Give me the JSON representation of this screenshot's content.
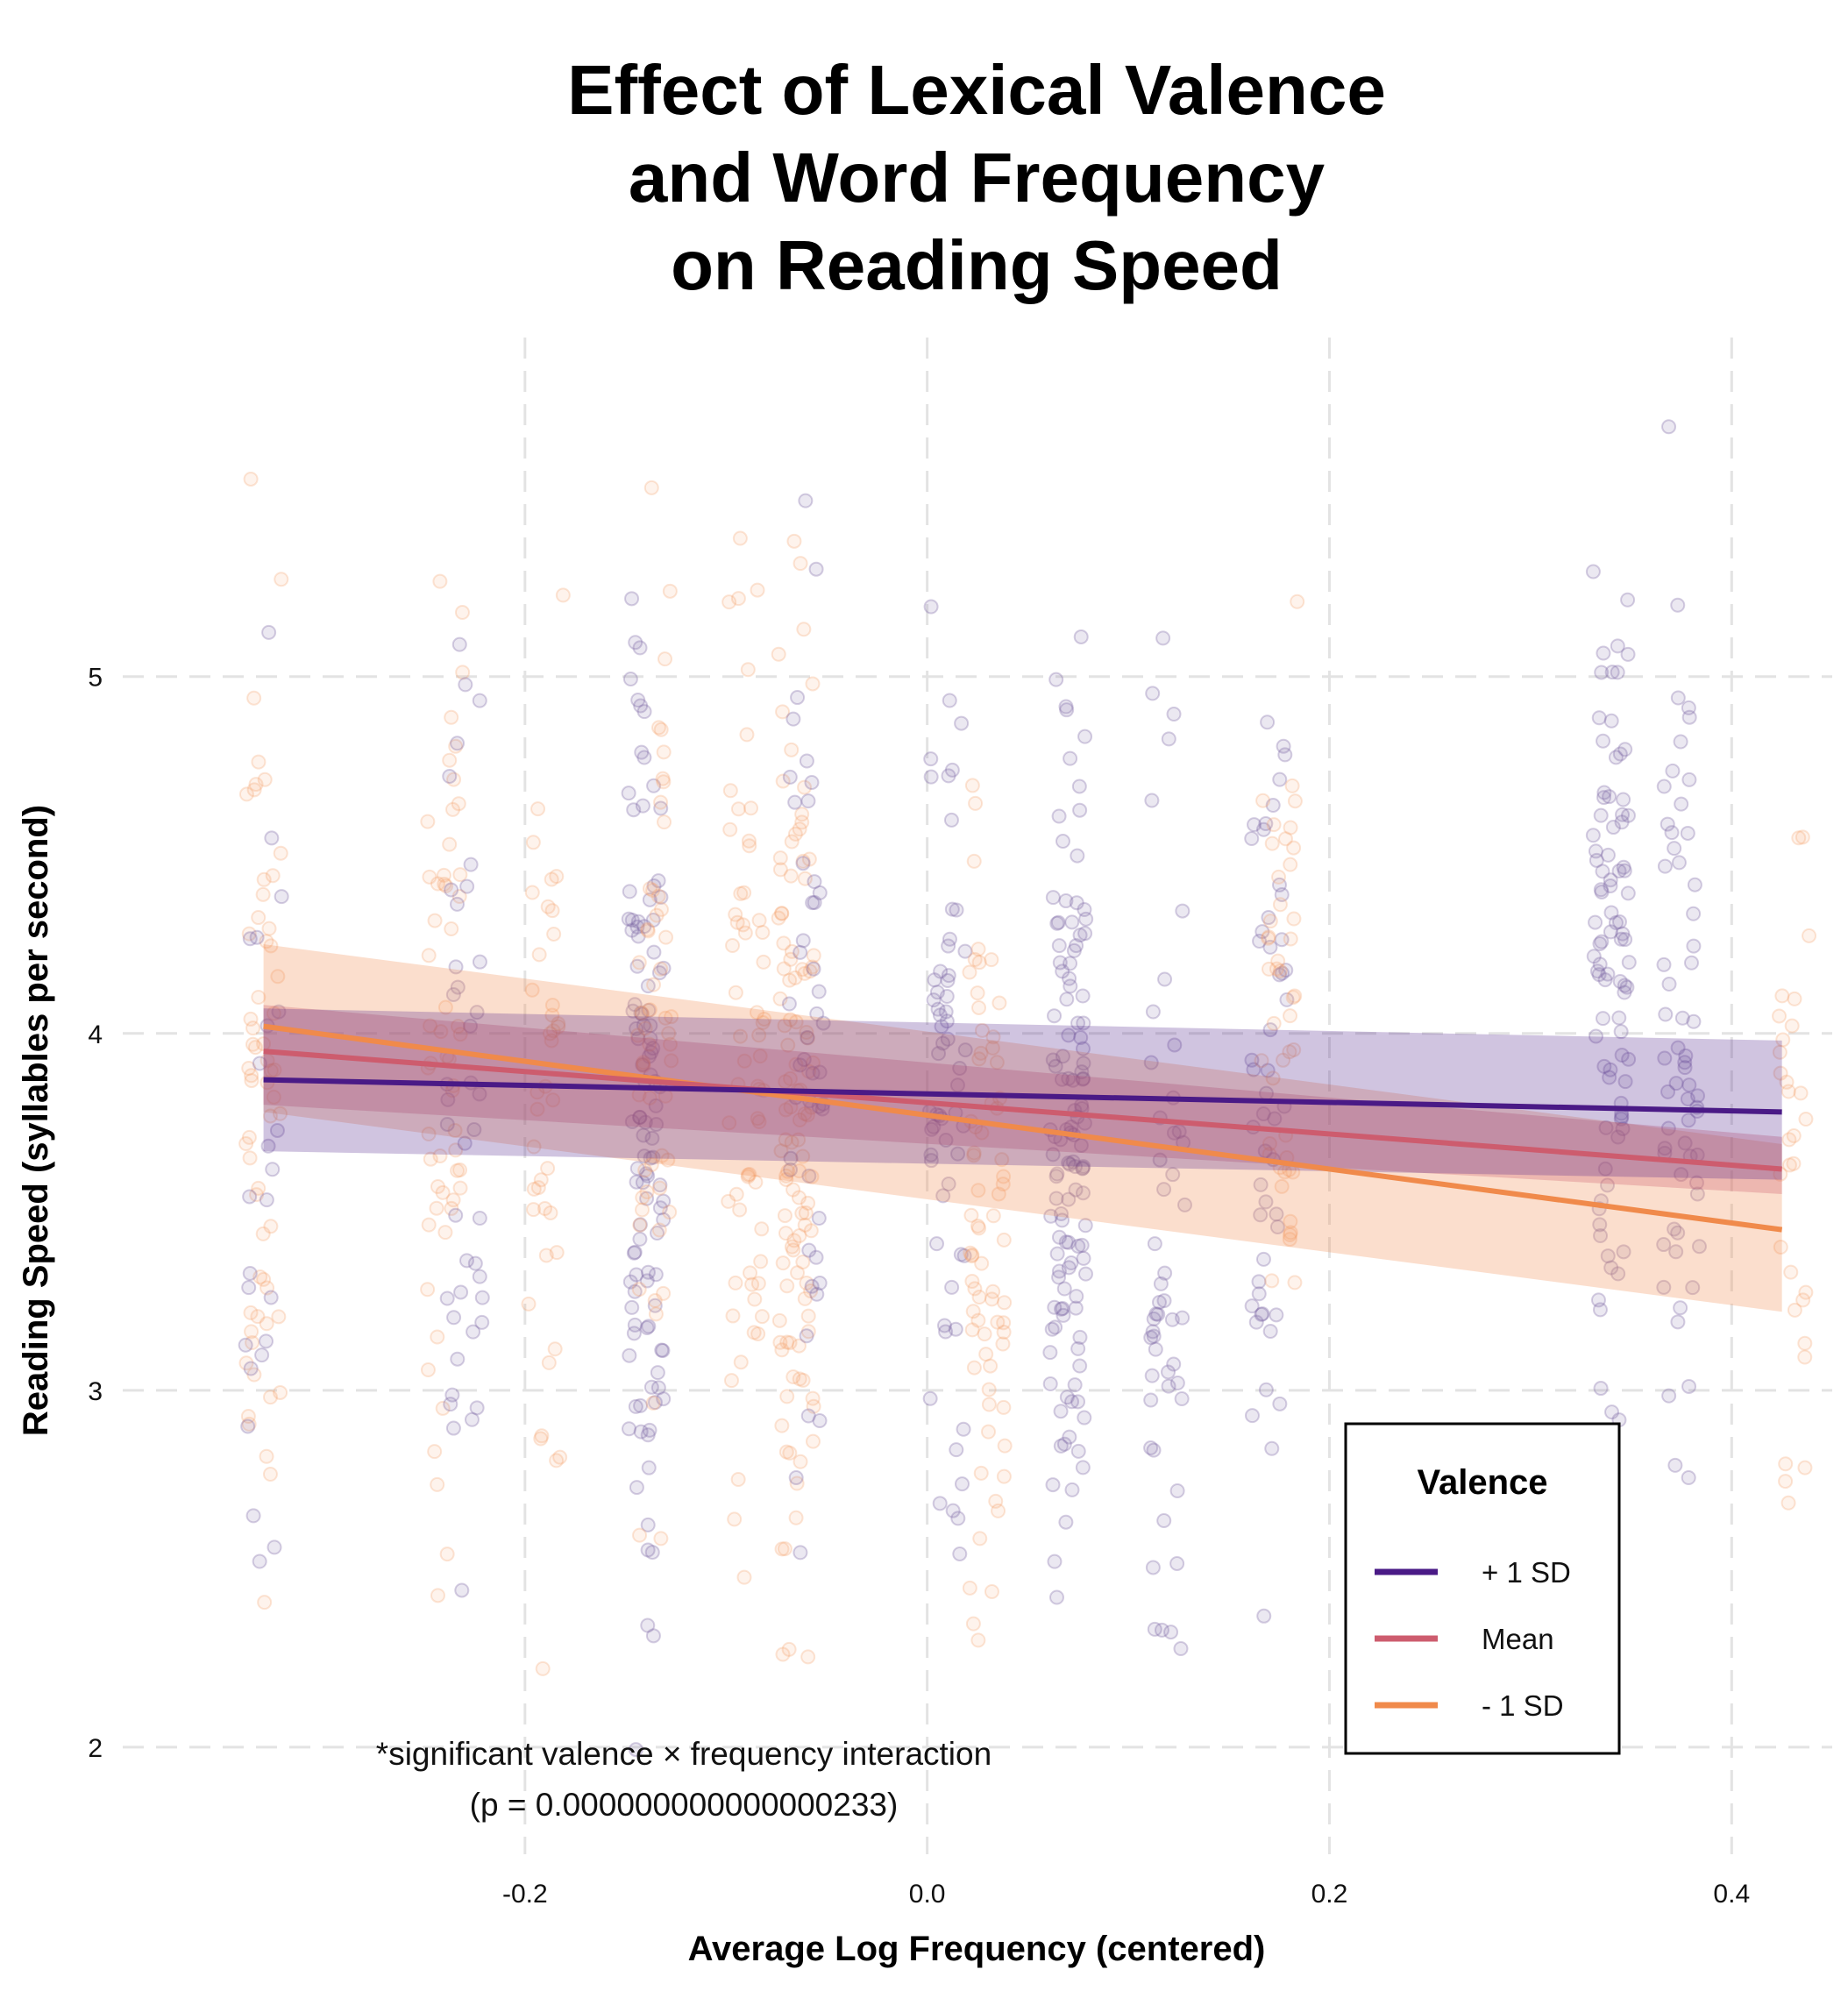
{
  "chart_data": {
    "type": "line",
    "title": [
      "Effect of Lexical Valence",
      "and Word Frequency",
      "on Reading Speed"
    ],
    "xlabel": "Average Log Frequency (centered)",
    "ylabel": "Reading Speed (syllables per second)",
    "xlim": [
      -0.4,
      0.45
    ],
    "ylim": [
      1.7,
      5.95
    ],
    "x_ticks": [
      -0.2,
      0.0,
      0.2,
      0.4
    ],
    "x_tick_labels": [
      "-0.2",
      "0.0",
      "0.2",
      "0.4"
    ],
    "y_ticks": [
      2,
      3,
      4,
      5
    ],
    "y_tick_labels": [
      "2",
      "3",
      "4",
      "5"
    ],
    "grid": true,
    "legend": {
      "title": "Valence",
      "placement": "bottom-right"
    },
    "series": [
      {
        "name": "- 1 SD",
        "color": "#f08a4b",
        "x": [
          -0.33,
          0.425
        ],
        "y": [
          4.02,
          3.45
        ],
        "ci_lower": [
          3.78,
          3.22
        ],
        "ci_upper": [
          4.25,
          3.69
        ]
      },
      {
        "name": "Mean",
        "color": "#cd5c6e",
        "x": [
          -0.33,
          0.425
        ],
        "y": [
          3.95,
          3.62
        ],
        "ci_lower": [
          3.8,
          3.55
        ],
        "ci_upper": [
          4.08,
          3.71
        ]
      },
      {
        "name": "+ 1 SD",
        "color": "#4a1a86",
        "x": [
          -0.33,
          0.425
        ],
        "y": [
          3.87,
          3.78
        ],
        "ci_lower": [
          3.67,
          3.59
        ],
        "ci_upper": [
          4.07,
          3.98
        ]
      }
    ],
    "scatter_groups": [
      {
        "x_center": -0.33,
        "mean": 3.85,
        "sd": 0.62,
        "n": 60,
        "color": "#f4a36a",
        "opacity": 0.18
      },
      {
        "x_center": -0.33,
        "mean": 3.7,
        "sd": 0.6,
        "n": 24,
        "color": "#7b68a6",
        "opacity": 0.22
      },
      {
        "x_center": -0.24,
        "mean": 3.9,
        "sd": 0.65,
        "n": 55,
        "color": "#f4a36a",
        "opacity": 0.18
      },
      {
        "x_center": -0.23,
        "mean": 3.9,
        "sd": 0.6,
        "n": 40,
        "color": "#7b68a6",
        "opacity": 0.22
      },
      {
        "x_center": -0.19,
        "mean": 3.75,
        "sd": 0.6,
        "n": 40,
        "color": "#f4a36a",
        "opacity": 0.18
      },
      {
        "x_center": -0.14,
        "mean": 3.7,
        "sd": 0.65,
        "n": 110,
        "color": "#7b68a6",
        "opacity": 0.22
      },
      {
        "x_center": -0.135,
        "mean": 4.0,
        "sd": 0.6,
        "n": 55,
        "color": "#f4a36a",
        "opacity": 0.18
      },
      {
        "x_center": -0.09,
        "mean": 3.85,
        "sd": 0.6,
        "n": 60,
        "color": "#f4a36a",
        "opacity": 0.18
      },
      {
        "x_center": -0.065,
        "mean": 3.85,
        "sd": 0.65,
        "n": 110,
        "color": "#f4a36a",
        "opacity": 0.18
      },
      {
        "x_center": -0.06,
        "mean": 3.95,
        "sd": 0.6,
        "n": 45,
        "color": "#7b68a6",
        "opacity": 0.22
      },
      {
        "x_center": 0.01,
        "mean": 3.85,
        "sd": 0.6,
        "n": 60,
        "color": "#7b68a6",
        "opacity": 0.22
      },
      {
        "x_center": 0.03,
        "mean": 3.5,
        "sd": 0.6,
        "n": 70,
        "color": "#f4a36a",
        "opacity": 0.18
      },
      {
        "x_center": 0.07,
        "mean": 3.7,
        "sd": 0.55,
        "n": 120,
        "color": "#7b68a6",
        "opacity": 0.22
      },
      {
        "x_center": 0.12,
        "mean": 3.6,
        "sd": 0.6,
        "n": 50,
        "color": "#7b68a6",
        "opacity": 0.22
      },
      {
        "x_center": 0.17,
        "mean": 3.9,
        "sd": 0.65,
        "n": 50,
        "color": "#7b68a6",
        "opacity": 0.22
      },
      {
        "x_center": 0.175,
        "mean": 4.0,
        "sd": 0.6,
        "n": 45,
        "color": "#f4a36a",
        "opacity": 0.18
      },
      {
        "x_center": 0.34,
        "mean": 4.1,
        "sd": 0.65,
        "n": 90,
        "color": "#7b68a6",
        "opacity": 0.22
      },
      {
        "x_center": 0.375,
        "mean": 4.1,
        "sd": 0.6,
        "n": 60,
        "color": "#7b68a6",
        "opacity": 0.22
      },
      {
        "x_center": 0.43,
        "mean": 3.6,
        "sd": 0.6,
        "n": 30,
        "color": "#f4a36a",
        "opacity": 0.18
      }
    ],
    "annotations": [
      "*significant valence × frequency interaction",
      "(p = 0.000000000000000233)"
    ]
  }
}
